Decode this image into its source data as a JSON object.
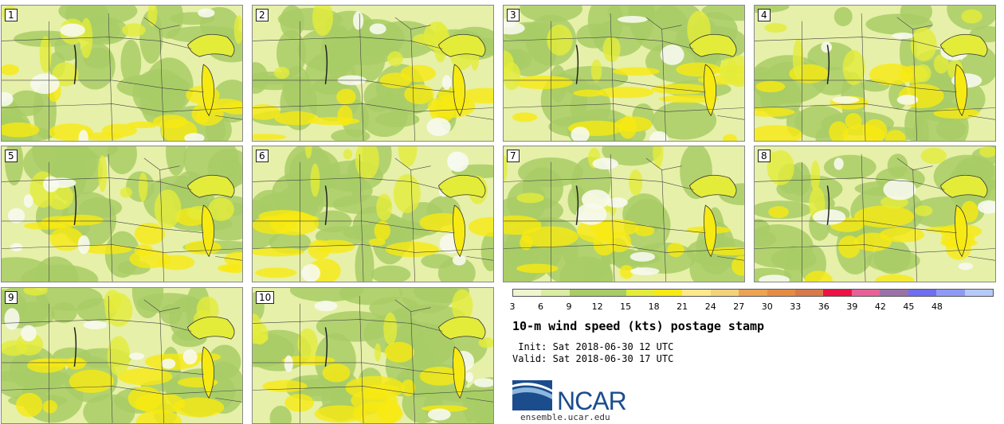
{
  "title": "10-m wind speed (kts) postage stamp",
  "init_line": " Init: Sat 2018-06-30 12 UTC",
  "valid_line": "Valid: Sat 2018-06-30 17 UTC",
  "logo_text": "NCAR",
  "logo_url": "ensemble.ucar.edu",
  "members": [
    "1",
    "2",
    "3",
    "4",
    "5",
    "6",
    "7",
    "8",
    "9",
    "10"
  ],
  "colorbar": {
    "ticks": [
      "3",
      "6",
      "9",
      "12",
      "15",
      "18",
      "21",
      "24",
      "27",
      "30",
      "33",
      "36",
      "39",
      "42",
      "45",
      "48"
    ],
    "colors": [
      "#eef5d0",
      "#d9eca0",
      "#a8cc66",
      "#a8cc66",
      "#e4ec3a",
      "#f7ea12",
      "#fbe98a",
      "#f3d37a",
      "#eca352",
      "#e68c42",
      "#d9794a",
      "#ee1144",
      "#e8609a",
      "#9b70a8",
      "#6e6ef2",
      "#8f9af6",
      "#b5c9fa"
    ],
    "colors_note": "17 bins between ticks"
  }
}
